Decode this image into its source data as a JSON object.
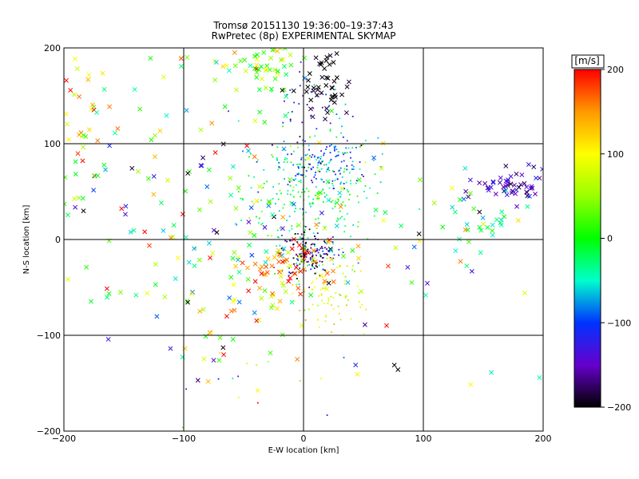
{
  "title_line1": "Tromsø 20151130 19:36:00–19:37:43",
  "title_line2": "RwPretec (8p) EXPERIMENTAL SKYMAP",
  "chart_data": {
    "type": "scatter",
    "xlabel": "E-W location [km]",
    "ylabel": "N-S location [km]",
    "xlim": [
      -200,
      200
    ],
    "ylim": [
      -200,
      200
    ],
    "x_ticks": [
      -200,
      -100,
      0,
      100,
      200
    ],
    "y_ticks": [
      -200,
      -100,
      0,
      100,
      200
    ],
    "x_tick_labels": [
      "−200",
      "−100",
      "0",
      "100",
      "200"
    ],
    "y_tick_labels": [
      "−200",
      "−100",
      "0",
      "100",
      "200"
    ],
    "grid": true,
    "colorbar": {
      "label": "[m/s]",
      "range": [
        -200,
        200
      ],
      "ticks": [
        200,
        100,
        0,
        -100,
        -200
      ],
      "tick_labels": [
        "200",
        "100",
        "0",
        "−100",
        "−200"
      ],
      "stops": [
        {
          "value": 200,
          "color": "#ff0000"
        },
        {
          "value": 150,
          "color": "#ff9900"
        },
        {
          "value": 100,
          "color": "#ffff00"
        },
        {
          "value": 50,
          "color": "#99ff00"
        },
        {
          "value": 0,
          "color": "#00ff00"
        },
        {
          "value": -50,
          "color": "#00ffcc"
        },
        {
          "value": -100,
          "color": "#0033ff"
        },
        {
          "value": -150,
          "color": "#6600cc"
        },
        {
          "value": -200,
          "color": "#000000"
        }
      ]
    },
    "clusters": [
      {
        "cx": 5,
        "cy": 45,
        "sx": 28,
        "sy": 35,
        "n": 260,
        "v": -20,
        "vs": 35,
        "mark": "dot"
      },
      {
        "cx": 12,
        "cy": 80,
        "sx": 22,
        "sy": 12,
        "n": 120,
        "v": -95,
        "vs": 25,
        "mark": "dot"
      },
      {
        "cx": 5,
        "cy": -15,
        "sx": 12,
        "sy": 12,
        "n": 140,
        "v": -170,
        "vs": 45,
        "mark": "dot"
      },
      {
        "cx": 20,
        "cy": -55,
        "sx": 15,
        "sy": 20,
        "n": 90,
        "v": 85,
        "vs": 30,
        "mark": "dot"
      },
      {
        "cx": -12,
        "cy": -25,
        "sx": 22,
        "sy": 15,
        "n": 60,
        "v": 150,
        "vs": 50,
        "mark": "x"
      },
      {
        "cx": 20,
        "cy": 160,
        "sx": 10,
        "sy": 20,
        "n": 45,
        "v": -200,
        "vs": 10,
        "mark": "x"
      },
      {
        "cx": 5,
        "cy": 130,
        "sx": 18,
        "sy": 25,
        "n": 45,
        "v": -110,
        "vs": 40,
        "mark": "dot"
      },
      {
        "cx": -35,
        "cy": 185,
        "sx": 18,
        "sy": 12,
        "n": 55,
        "v": 40,
        "vs": 60,
        "mark": "x"
      },
      {
        "cx": 175,
        "cy": 55,
        "sx": 15,
        "sy": 8,
        "n": 55,
        "v": -150,
        "vs": 25,
        "mark": "x"
      },
      {
        "cx": 145,
        "cy": 15,
        "sx": 25,
        "sy": 20,
        "n": 30,
        "v": -40,
        "vs": 40,
        "mark": "x"
      },
      {
        "cx": -185,
        "cy": 110,
        "sx": 12,
        "sy": 30,
        "n": 35,
        "v": 90,
        "vs": 80,
        "mark": "x"
      },
      {
        "cx": -110,
        "cy": 60,
        "sx": 65,
        "sy": 70,
        "n": 120,
        "v": 0,
        "vs": 120,
        "mark": "x"
      },
      {
        "cx": -60,
        "cy": -40,
        "sx": 55,
        "sy": 45,
        "n": 90,
        "v": 40,
        "vs": 120,
        "mark": "x"
      },
      {
        "cx": 60,
        "cy": 0,
        "sx": 70,
        "sy": 80,
        "n": 70,
        "v": 0,
        "vs": 120,
        "mark": "x"
      },
      {
        "cx": -40,
        "cy": -150,
        "sx": 35,
        "sy": 30,
        "n": 15,
        "v": 50,
        "vs": 120,
        "mark": "dot"
      }
    ]
  }
}
